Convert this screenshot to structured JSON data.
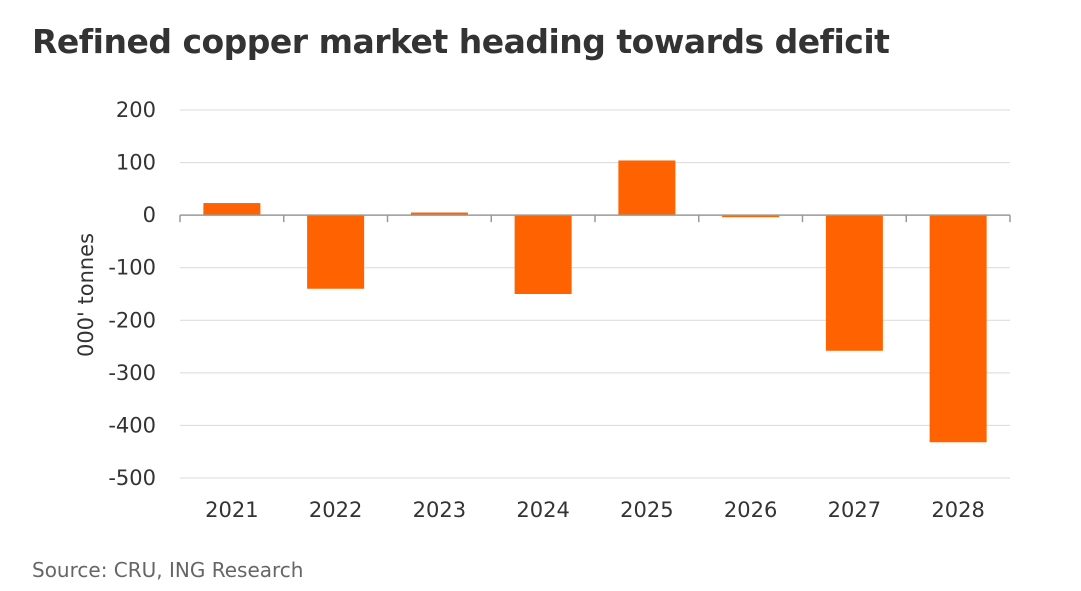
{
  "chart_data": {
    "type": "bar",
    "title": "Refined copper market heading towards deficit",
    "source": "Source: CRU, ING Research",
    "xlabel": "",
    "ylabel": "000' tonnes",
    "categories": [
      "2021",
      "2022",
      "2023",
      "2024",
      "2025",
      "2026",
      "2027",
      "2028"
    ],
    "values": [
      23,
      -140,
      5,
      -150,
      104,
      -3,
      -258,
      -432
    ],
    "ylim": [
      -500,
      200
    ],
    "yticks": [
      200,
      100,
      0,
      -100,
      -200,
      -300,
      -400,
      -500
    ],
    "ytick_labels": [
      "200",
      "100",
      "0",
      "-100",
      "-200",
      "-300",
      "-400",
      "-500"
    ],
    "grid": true,
    "legend": "none",
    "colors": {
      "bar": "#ff6200",
      "grid": "#d9d9d9",
      "zero_axis": "#999999",
      "text": "#333333",
      "source_text": "#666666"
    }
  }
}
